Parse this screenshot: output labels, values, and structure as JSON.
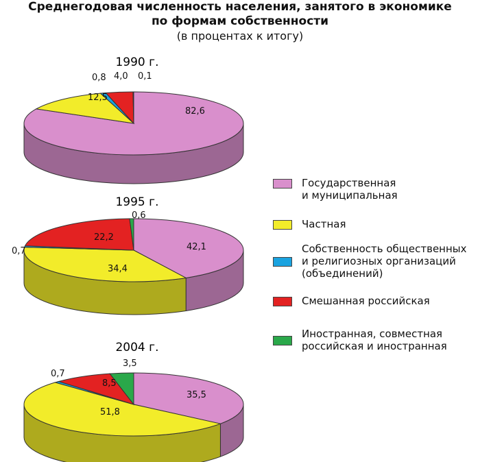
{
  "title_line1": "Среднегодовая численность населения, занятого в экономике",
  "title_line2": "по формам собственности",
  "title_line3": "(в процентах к итогу)",
  "colors": {
    "state": "#d98fcc",
    "private": "#f2ec2a",
    "public_org": "#1aa3e0",
    "mixed": "#e32222",
    "foreign": "#2aa84a"
  },
  "legend": [
    {
      "key": "state",
      "line1": "Государственная",
      "line2": "и муниципальная"
    },
    {
      "key": "private",
      "line1": "Частная",
      "line2": ""
    },
    {
      "key": "public_org",
      "line1": "Собственность общественных",
      "line2": "и религиозных организаций",
      "line3": "(объединений)"
    },
    {
      "key": "mixed",
      "line1": "Смешанная российская",
      "line2": ""
    },
    {
      "key": "foreign",
      "line1": "Иностранная, совместная",
      "line2": "российская и иностранная"
    }
  ],
  "chart_data": [
    {
      "type": "pie",
      "title": "1990 г.",
      "slices": [
        {
          "key": "state",
          "value": 82.6,
          "label": "82,6"
        },
        {
          "key": "private",
          "value": 12.5,
          "label": "12,5"
        },
        {
          "key": "public_org",
          "value": 0.8,
          "label": "0,8"
        },
        {
          "key": "mixed",
          "value": 4.0,
          "label": "4,0"
        },
        {
          "key": "foreign",
          "value": 0.1,
          "label": "0,1"
        }
      ]
    },
    {
      "type": "pie",
      "title": "1995 г.",
      "slices": [
        {
          "key": "state",
          "value": 42.1,
          "label": "42,1"
        },
        {
          "key": "private",
          "value": 34.4,
          "label": "34,4"
        },
        {
          "key": "public_org",
          "value": 0.7,
          "label": "0,7"
        },
        {
          "key": "mixed",
          "value": 22.2,
          "label": "22,2"
        },
        {
          "key": "foreign",
          "value": 0.6,
          "label": "0,6"
        }
      ]
    },
    {
      "type": "pie",
      "title": "2004 г.",
      "slices": [
        {
          "key": "state",
          "value": 35.5,
          "label": "35,5"
        },
        {
          "key": "private",
          "value": 51.8,
          "label": "51,8"
        },
        {
          "key": "public_org",
          "value": 0.7,
          "label": "0,7"
        },
        {
          "key": "mixed",
          "value": 8.5,
          "label": "8,5"
        },
        {
          "key": "foreign",
          "value": 3.5,
          "label": "3,5"
        }
      ]
    }
  ]
}
